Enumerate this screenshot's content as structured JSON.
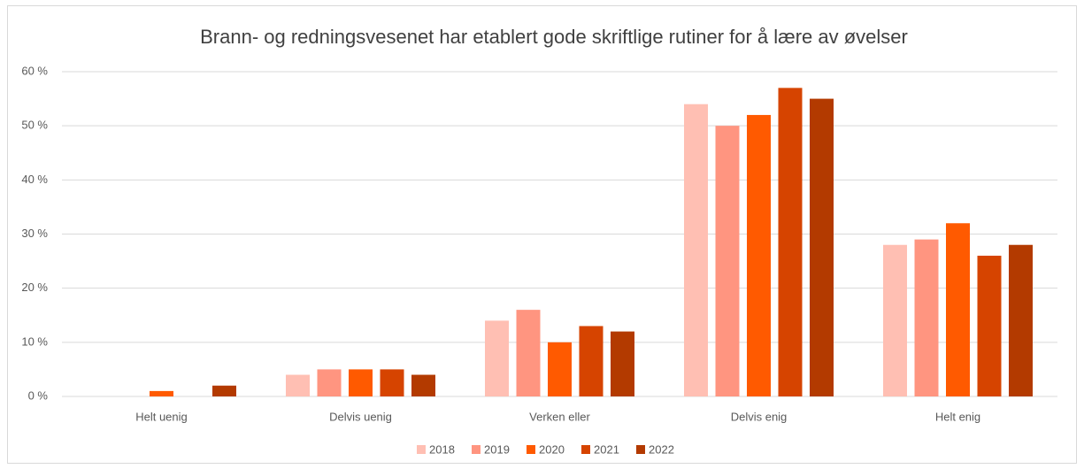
{
  "chart_data": {
    "type": "bar",
    "title": "Brann- og redningsvesenet har etablert gode skriftlige rutiner for å lære av øvelser",
    "categories": [
      "Helt uenig",
      "Delvis uenig",
      "Verken eller",
      "Delvis enig",
      "Helt enig"
    ],
    "series": [
      {
        "name": "2018",
        "color": "#ffbfb3",
        "values": [
          0,
          4,
          14,
          54,
          28
        ]
      },
      {
        "name": "2019",
        "color": "#ff9580",
        "values": [
          0,
          5,
          16,
          50,
          29
        ]
      },
      {
        "name": "2020",
        "color": "#ff5a00",
        "values": [
          1,
          5,
          10,
          52,
          32
        ]
      },
      {
        "name": "2021",
        "color": "#d64400",
        "values": [
          0,
          5,
          13,
          57,
          26
        ]
      },
      {
        "name": "2022",
        "color": "#b33a00",
        "values": [
          2,
          4,
          12,
          55,
          28
        ]
      }
    ],
    "ylim": [
      0,
      60
    ],
    "yticks": [
      {
        "value": 0,
        "label": "0 %"
      },
      {
        "value": 10,
        "label": "10 %"
      },
      {
        "value": 20,
        "label": "20 %"
      },
      {
        "value": 30,
        "label": "30 %"
      },
      {
        "value": 40,
        "label": "40 %"
      },
      {
        "value": 50,
        "label": "50 %"
      },
      {
        "value": 60,
        "label": "60 %"
      }
    ],
    "grid": true,
    "legend": "bottom"
  }
}
